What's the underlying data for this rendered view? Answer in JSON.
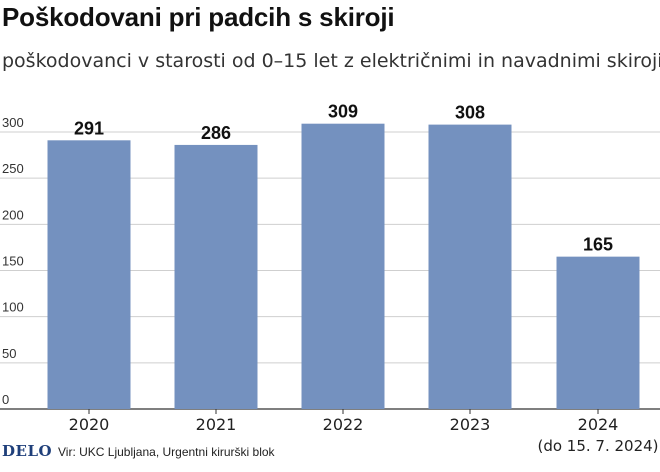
{
  "title": "Poškodovani pri padcih s skiroji",
  "subtitle": "poškodovanci v starosti od 0–15 let z električnimi in navadnimi skiroji",
  "footer": {
    "logo": "DELO",
    "source": "Vir: UKC Ljubljana, Urgentni kirurški blok"
  },
  "colors": {
    "bar": "#7491bf",
    "grid": "#cfcfcf",
    "axis": "#333333"
  },
  "chart_data": {
    "type": "bar",
    "categories": [
      "2020",
      "2021",
      "2022",
      "2023",
      "2024"
    ],
    "category_notes": [
      "",
      "",
      "",
      "",
      "(do 15. 7. 2024)"
    ],
    "values": [
      291,
      286,
      309,
      308,
      165
    ],
    "data_labels": [
      "291",
      "286",
      "309",
      "308",
      "165"
    ],
    "title": "Poškodovani pri padcih s skiroji",
    "xlabel": "",
    "ylabel": "",
    "ylim": [
      0,
      330
    ],
    "yticks": [
      0,
      50,
      100,
      150,
      200,
      250,
      300
    ],
    "grid": true,
    "legend": "none"
  }
}
